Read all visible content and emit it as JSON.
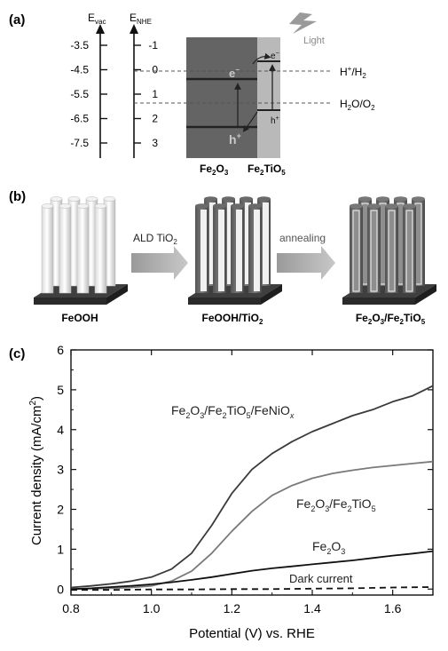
{
  "panel_a": {
    "label": "(a)",
    "evac_axis": {
      "label_main": "E",
      "label_sub": "vac",
      "ticks": [
        "-3.5",
        "-4.5",
        "-5.5",
        "-6.5",
        "-7.5"
      ]
    },
    "enhe_axis": {
      "label_main": "E",
      "label_sub": "NHE",
      "ticks": [
        "-1",
        "0",
        "1",
        "2",
        "3"
      ]
    },
    "electron": "e",
    "electron_sup": "−",
    "hole": "h",
    "hole_sup": "+",
    "light": "Light",
    "h_level_main": "H",
    "h_level_sup": "+",
    "h_level_rest": "/H",
    "h_level_sub": "2",
    "o_level_main": "H",
    "o_level_sub1": "2",
    "o_level_mid": "O/O",
    "o_level_sub2": "2",
    "fe2o3_main": "Fe",
    "fe2o3_sub1": "2",
    "fe2o3_mid": "O",
    "fe2o3_sub2": "3",
    "fe2tio5_main": "Fe",
    "fe2tio5_sub1": "2",
    "fe2tio5_mid": "TiO",
    "fe2tio5_sub2": "5",
    "colors": {
      "fe2o3": "#646464",
      "fe2tio5": "#b9b9b9",
      "band_line": "#222222"
    }
  },
  "panel_b": {
    "label": "(b)",
    "step1_text": "ALD TiO",
    "step1_sub": "2",
    "step2_text": "annealing",
    "stage1": "FeOOH",
    "stage2_main": "FeOOH/TiO",
    "stage2_sub": "2",
    "stage3_a": "Fe",
    "stage3_s1": "2",
    "stage3_b": "O",
    "stage3_s2": "3",
    "stage3_c": "/Fe",
    "stage3_s3": "2",
    "stage3_d": "TiO",
    "stage3_s4": "5"
  },
  "panel_c": {
    "label": "(c)",
    "ylabel_main": "Current density (mA/cm",
    "ylabel_sup": "2",
    "ylabel_end": ")",
    "xlabel": "Potential (V) vs. RHE",
    "curve1_a": "Fe",
    "curve1_s1": "2",
    "curve1_b": "O",
    "curve1_s2": "3",
    "curve1_c": "/Fe",
    "curve1_s3": "2",
    "curve1_d": "TiO",
    "curve1_s4": "5",
    "curve1_e": "/FeNiO",
    "curve1_x": "x",
    "curve2_a": "Fe",
    "curve2_s1": "2",
    "curve2_b": "O",
    "curve2_s2": "3",
    "curve2_c": "/Fe",
    "curve2_s3": "2",
    "curve2_d": "TiO",
    "curve2_s4": "5",
    "curve3_a": "Fe",
    "curve3_s1": "2",
    "curve3_b": "O",
    "curve3_s2": "3",
    "curve4": "Dark current"
  },
  "chart_data": {
    "type": "line",
    "xlabel": "Potential (V) vs. RHE",
    "ylabel": "Current density (mA/cm2)",
    "xlim": [
      0.8,
      1.7
    ],
    "ylim": [
      -0.15,
      6
    ],
    "xticks": [
      0.8,
      1.0,
      1.2,
      1.4,
      1.6
    ],
    "yticks": [
      0,
      1,
      2,
      3,
      4,
      5,
      6
    ],
    "grid": false,
    "series": [
      {
        "name": "Fe2O3/Fe2TiO5/FeNiOx",
        "color": "#3a3a3a",
        "dash": "",
        "x": [
          0.8,
          0.85,
          0.9,
          0.95,
          1.0,
          1.05,
          1.1,
          1.15,
          1.2,
          1.25,
          1.3,
          1.35,
          1.4,
          1.45,
          1.5,
          1.55,
          1.6,
          1.65,
          1.7
        ],
        "y": [
          0.04,
          0.08,
          0.13,
          0.2,
          0.3,
          0.5,
          0.9,
          1.6,
          2.4,
          3.0,
          3.4,
          3.7,
          3.95,
          4.15,
          4.35,
          4.5,
          4.7,
          4.85,
          5.1
        ]
      },
      {
        "name": "Fe2O3/Fe2TiO5",
        "color": "#7a7a7a",
        "dash": "",
        "x": [
          0.8,
          0.85,
          0.9,
          0.95,
          1.0,
          1.05,
          1.1,
          1.15,
          1.2,
          1.25,
          1.3,
          1.35,
          1.4,
          1.45,
          1.5,
          1.55,
          1.6,
          1.65,
          1.7
        ],
        "y": [
          0.0,
          0.01,
          0.02,
          0.04,
          0.08,
          0.2,
          0.45,
          0.9,
          1.45,
          1.95,
          2.35,
          2.6,
          2.78,
          2.9,
          2.98,
          3.05,
          3.1,
          3.15,
          3.2
        ]
      },
      {
        "name": "Fe2O3",
        "color": "#111111",
        "dash": "",
        "x": [
          0.8,
          0.85,
          0.9,
          0.95,
          1.0,
          1.05,
          1.1,
          1.15,
          1.2,
          1.25,
          1.3,
          1.35,
          1.4,
          1.45,
          1.5,
          1.55,
          1.6,
          1.65,
          1.7
        ],
        "y": [
          0.0,
          0.02,
          0.05,
          0.08,
          0.12,
          0.17,
          0.23,
          0.3,
          0.38,
          0.46,
          0.52,
          0.57,
          0.62,
          0.67,
          0.72,
          0.78,
          0.84,
          0.89,
          0.95
        ]
      },
      {
        "name": "Dark current",
        "color": "#111111",
        "dash": "7,5",
        "x": [
          0.8,
          0.9,
          1.0,
          1.1,
          1.2,
          1.3,
          1.4,
          1.5,
          1.6,
          1.7
        ],
        "y": [
          -0.02,
          -0.02,
          -0.01,
          -0.01,
          0.0,
          0.0,
          0.01,
          0.02,
          0.04,
          0.05
        ]
      }
    ]
  }
}
